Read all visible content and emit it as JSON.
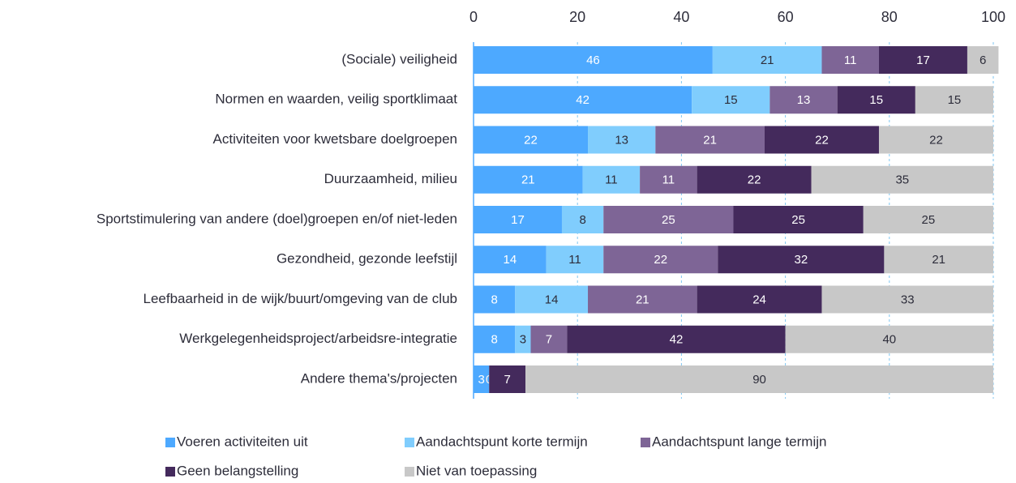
{
  "chart_data": {
    "type": "stacked_barh",
    "categories": [
      "(Sociale) veiligheid",
      "Normen en waarden, veilig sportklimaat",
      "Activiteiten voor kwetsbare doelgroepen",
      "Duurzaamheid, milieu",
      "Sportstimulering van andere (doel)groepen en/of niet-leden",
      "Gezondheid, gezonde leefstijl",
      "Leefbaarheid in de wijk/buurt/omgeving van de club",
      "Werkgelegenheidsproject/arbeidsre-integratie",
      "Andere thema's/projecten"
    ],
    "series": [
      {
        "name": "Voeren activiteiten uit",
        "color": "#4da9ff",
        "label_color": "#ffffff",
        "values": [
          46,
          42,
          22,
          21,
          17,
          14,
          8,
          8,
          3
        ]
      },
      {
        "name": "Aandachtspunt korte termijn",
        "color": "#80cdfd",
        "label_color": "#2d2d3a",
        "values": [
          21,
          15,
          13,
          11,
          8,
          11,
          14,
          3,
          0
        ]
      },
      {
        "name": "Aandachtspunt lange termijn",
        "color": "#7e6596",
        "label_color": "#ffffff",
        "values": [
          11,
          13,
          21,
          11,
          25,
          22,
          21,
          7,
          0
        ]
      },
      {
        "name": "Geen belangstelling",
        "color": "#442a5c",
        "label_color": "#ffffff",
        "values": [
          17,
          15,
          22,
          22,
          25,
          32,
          24,
          42,
          7
        ]
      },
      {
        "name": "Niet van toepassing",
        "color": "#c8c8c8",
        "label_color": "#2d2d3a",
        "values": [
          6,
          15,
          22,
          35,
          25,
          21,
          33,
          40,
          90
        ]
      }
    ],
    "xlim": [
      0,
      100
    ],
    "xticks": [
      0,
      20,
      40,
      60,
      80,
      100
    ],
    "grid": true
  }
}
